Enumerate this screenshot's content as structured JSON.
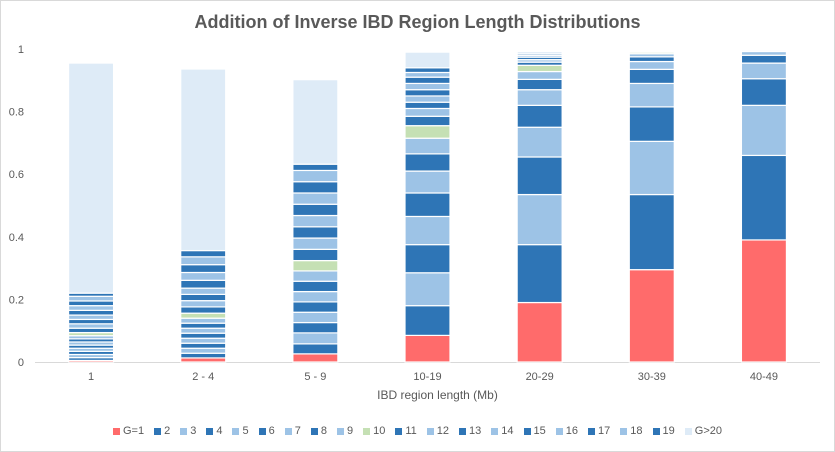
{
  "chart_data": {
    "type": "bar",
    "stacked": true,
    "title": "Addition of Inverse IBD Region Length Distributions",
    "xlabel": "IBD region length (Mb)",
    "ylabel": "",
    "ylim": [
      0,
      1
    ],
    "yticks": [
      "0",
      "0.2",
      "0.4",
      "0.6",
      "0.8",
      "1"
    ],
    "grid": false,
    "legend": "bottom",
    "categories": [
      "1",
      "2 - 4",
      "5 - 9",
      "10-19",
      "20-29",
      "30-39",
      "40-49"
    ],
    "series": [
      {
        "name": "G=1",
        "color": "#ff6b6b",
        "values": [
          0.005,
          0.013,
          0.026,
          0.085,
          0.19,
          0.295,
          0.39
        ]
      },
      {
        "name": "2",
        "color": "#2e75b6",
        "values": [
          0.009,
          0.015,
          0.032,
          0.095,
          0.185,
          0.24,
          0.27
        ]
      },
      {
        "name": "3",
        "color": "#9dc3e6",
        "values": [
          0.01,
          0.016,
          0.035,
          0.105,
          0.16,
          0.17,
          0.16
        ]
      },
      {
        "name": "4",
        "color": "#2e75b6",
        "values": [
          0.01,
          0.016,
          0.033,
          0.09,
          0.12,
          0.11,
          0.085
        ]
      },
      {
        "name": "5",
        "color": "#9dc3e6",
        "values": [
          0.01,
          0.016,
          0.033,
          0.09,
          0.095,
          0.075,
          0.05
        ]
      },
      {
        "name": "6",
        "color": "#2e75b6",
        "values": [
          0.01,
          0.016,
          0.033,
          0.075,
          0.07,
          0.045,
          0.025
        ]
      },
      {
        "name": "7",
        "color": "#9dc3e6",
        "values": [
          0.01,
          0.016,
          0.033,
          0.07,
          0.05,
          0.025,
          0.012
        ]
      },
      {
        "name": "8",
        "color": "#2e75b6",
        "values": [
          0.01,
          0.016,
          0.033,
          0.055,
          0.033,
          0.015,
          0.004
        ]
      },
      {
        "name": "9",
        "color": "#9dc3e6",
        "values": [
          0.01,
          0.016,
          0.033,
          0.05,
          0.025,
          0.01,
          0.002
        ]
      },
      {
        "name": "10",
        "color": "#c5e0b4",
        "values": [
          0.01,
          0.016,
          0.033,
          0.04,
          0.02,
          0.005,
          0.001
        ]
      },
      {
        "name": "11",
        "color": "#2e75b6",
        "values": [
          0.014,
          0.02,
          0.036,
          0.03,
          0.01,
          0.003,
          0.001
        ]
      },
      {
        "name": "12",
        "color": "#9dc3e6",
        "values": [
          0.014,
          0.02,
          0.036,
          0.025,
          0.008,
          0.003,
          0.001
        ]
      },
      {
        "name": "13",
        "color": "#2e75b6",
        "values": [
          0.014,
          0.02,
          0.036,
          0.02,
          0.008,
          0.002,
          0.001
        ]
      },
      {
        "name": "14",
        "color": "#9dc3e6",
        "values": [
          0.014,
          0.02,
          0.036,
          0.02,
          0.006,
          0.002,
          0.001
        ]
      },
      {
        "name": "15",
        "color": "#2e75b6",
        "values": [
          0.015,
          0.025,
          0.036,
          0.02,
          0.005,
          0.0,
          0.0
        ]
      },
      {
        "name": "16",
        "color": "#9dc3e6",
        "values": [
          0.015,
          0.025,
          0.036,
          0.02,
          0.005,
          0.0,
          0.0
        ]
      },
      {
        "name": "17",
        "color": "#2e75b6",
        "values": [
          0.015,
          0.025,
          0.036,
          0.02,
          0.0,
          0.0,
          0.0
        ]
      },
      {
        "name": "18",
        "color": "#9dc3e6",
        "values": [
          0.015,
          0.025,
          0.036,
          0.015,
          0.0,
          0.0,
          0.0
        ]
      },
      {
        "name": "19",
        "color": "#2e75b6",
        "values": [
          0.01,
          0.02,
          0.02,
          0.015,
          0.0,
          0.0,
          0.0
        ]
      },
      {
        "name": "G>20",
        "color": "#deebf7",
        "values": [
          0.735,
          0.58,
          0.27,
          0.05,
          0.0,
          0.0,
          0.0
        ]
      }
    ]
  }
}
